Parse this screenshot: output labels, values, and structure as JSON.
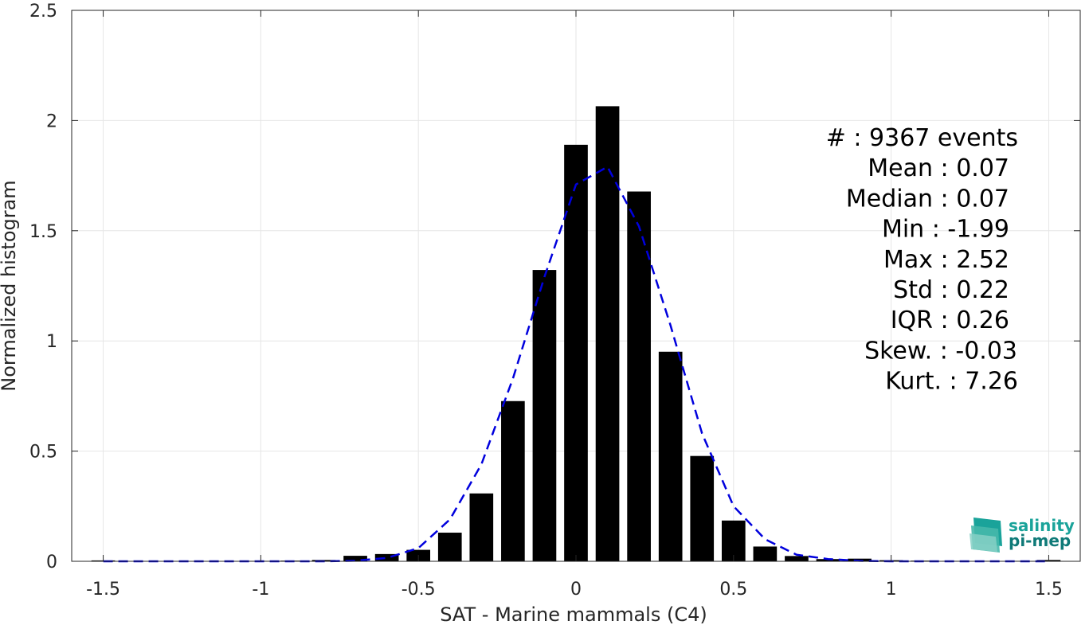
{
  "chart_data": {
    "type": "bar",
    "title": "",
    "xlabel": "SAT - Marine mammals (C4)",
    "ylabel": "Normalized histogram",
    "xlim": [
      -1.6,
      1.6
    ],
    "ylim": [
      0,
      2.5
    ],
    "xticks": [
      -1.5,
      -1,
      -0.5,
      0,
      0.5,
      1,
      1.5
    ],
    "xtick_labels": [
      "-1.5",
      "-1",
      "-0.5",
      "0",
      "0.5",
      "1",
      "1.5"
    ],
    "yticks": [
      0,
      0.5,
      1,
      1.5,
      2,
      2.5
    ],
    "ytick_labels": [
      "0",
      "0.5",
      "1",
      "1.5",
      "2",
      "2.5"
    ],
    "grid": true,
    "bar_color": "#000000",
    "bar_width": 0.075,
    "bars": {
      "x": [
        -1.5,
        -1.4,
        -1.3,
        -1.2,
        -1.1,
        -1.0,
        -0.9,
        -0.8,
        -0.7,
        -0.6,
        -0.5,
        -0.4,
        -0.3,
        -0.2,
        -0.1,
        0.0,
        0.1,
        0.2,
        0.3,
        0.4,
        0.5,
        0.6,
        0.7,
        0.8,
        0.9,
        1.0,
        1.1,
        1.2,
        1.3,
        1.4,
        1.5
      ],
      "values": [
        0.004,
        0.001,
        0.001,
        0.001,
        0.001,
        0.002,
        0.003,
        0.006,
        0.025,
        0.033,
        0.052,
        0.13,
        0.308,
        0.727,
        1.322,
        1.89,
        2.065,
        1.678,
        0.951,
        0.478,
        0.185,
        0.067,
        0.024,
        0.01,
        0.012,
        0.005,
        0.003,
        0.002,
        0.002,
        0.002,
        0.006
      ]
    },
    "fit_curve": {
      "style": "dashed",
      "color": "#0000dd",
      "x": [
        -1.5,
        -1.4,
        -1.3,
        -1.2,
        -1.1,
        -1.0,
        -0.9,
        -0.8,
        -0.7,
        -0.6,
        -0.5,
        -0.4,
        -0.3,
        -0.2,
        -0.1,
        0.0,
        0.1,
        0.2,
        0.3,
        0.4,
        0.5,
        0.6,
        0.7,
        0.8,
        0.9,
        1.0,
        1.1,
        1.2,
        1.3,
        1.4,
        1.5
      ],
      "y": [
        0.0,
        0.0,
        0.0,
        0.0,
        0.0,
        0.0,
        0.0,
        0.0,
        0.003,
        0.015,
        0.06,
        0.19,
        0.44,
        0.83,
        1.29,
        1.71,
        1.79,
        1.52,
        1.07,
        0.58,
        0.25,
        0.1,
        0.03,
        0.01,
        0.002,
        0.0,
        0.0,
        0.0,
        0.0,
        0.0,
        0.0
      ]
    },
    "stats": [
      {
        "label": "#  : 9367 events"
      },
      {
        "label": "Mean : 0.07"
      },
      {
        "label": "Median : 0.07"
      },
      {
        "label": "Min : -1.99"
      },
      {
        "label": "Max : 2.52"
      },
      {
        "label": "Std : 0.22"
      },
      {
        "label": "IQR : 0.26"
      },
      {
        "label": "Skew. : -0.03"
      },
      {
        "label": "Kurt. : 7.26"
      }
    ]
  },
  "logo": {
    "line1": "salinity",
    "line2": "pi-mep",
    "color1": "#1aa39a",
    "color2": "#0f7a78"
  }
}
